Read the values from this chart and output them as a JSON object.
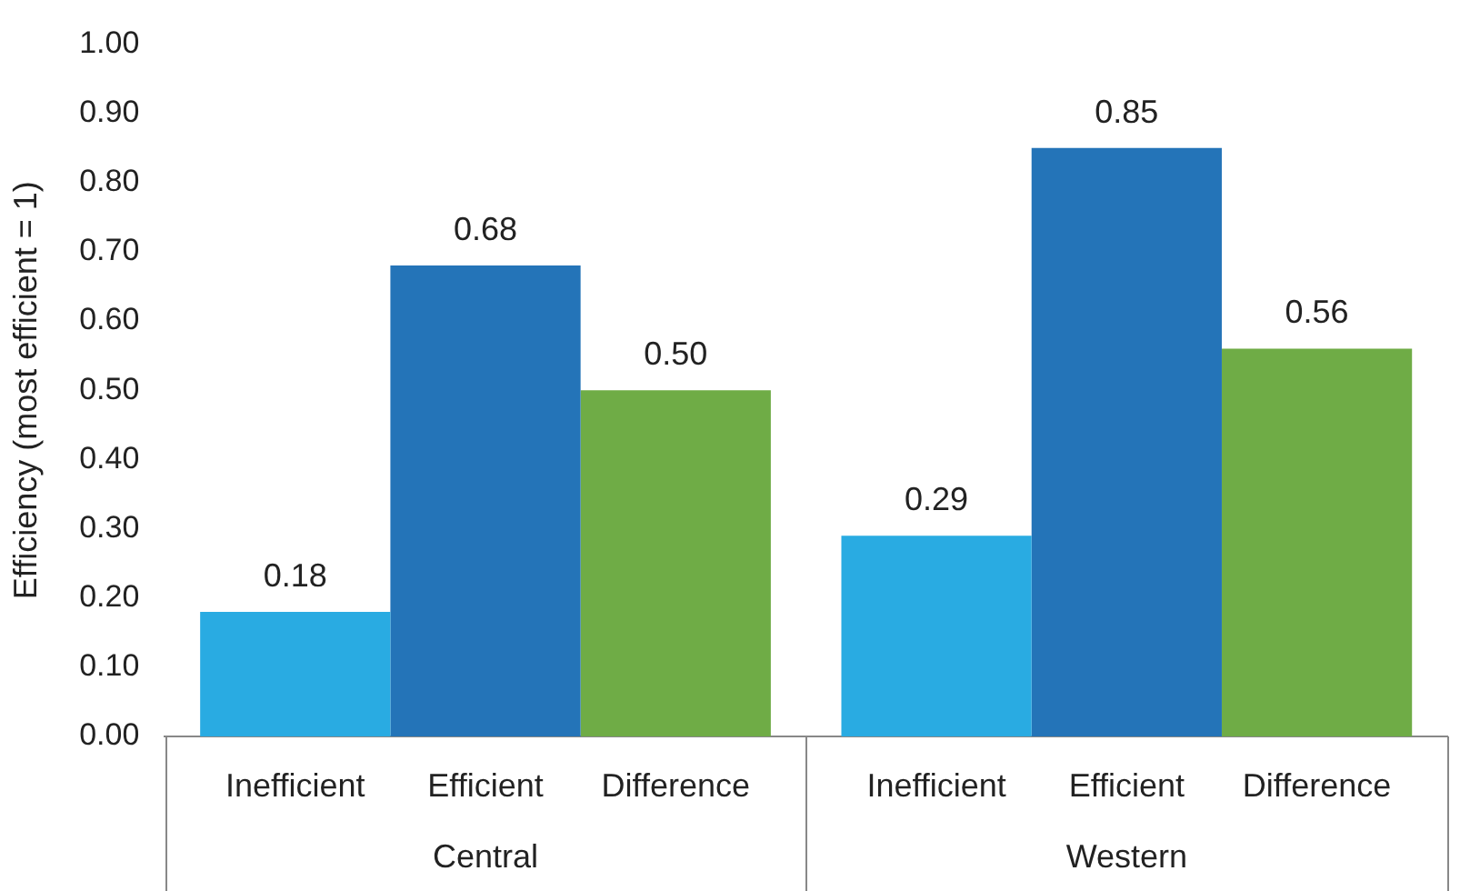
{
  "chart_data": {
    "type": "bar",
    "ylabel": "Efficiency (most efficient = 1)",
    "categories": [
      "Central",
      "Western"
    ],
    "series": [
      {
        "name": "Inefficient",
        "color": "#29abe2",
        "values": [
          0.18,
          0.29
        ],
        "value_labels": [
          "0.18",
          "0.29"
        ]
      },
      {
        "name": "Efficient",
        "color": "#2474b8",
        "values": [
          0.68,
          0.85
        ],
        "value_labels": [
          "0.68",
          "0.85"
        ]
      },
      {
        "name": "Difference",
        "color": "#6fac46",
        "values": [
          0.5,
          0.56
        ],
        "value_labels": [
          "0.50",
          "0.56"
        ]
      }
    ],
    "ylim": [
      0,
      1
    ],
    "yticks": [
      {
        "value": 0,
        "label": "0.00"
      },
      {
        "value": 0.1,
        "label": "0.10"
      },
      {
        "value": 0.2,
        "label": "0.20"
      },
      {
        "value": 0.3,
        "label": "0.30"
      },
      {
        "value": 0.4,
        "label": "0.40"
      },
      {
        "value": 0.5,
        "label": "0.50"
      },
      {
        "value": 0.6,
        "label": "0.60"
      },
      {
        "value": 0.7,
        "label": "0.70"
      },
      {
        "value": 0.8,
        "label": "0.80"
      },
      {
        "value": 0.9,
        "label": "0.90"
      },
      {
        "value": 1,
        "label": "1.00"
      }
    ],
    "grid": false,
    "legend": false
  }
}
